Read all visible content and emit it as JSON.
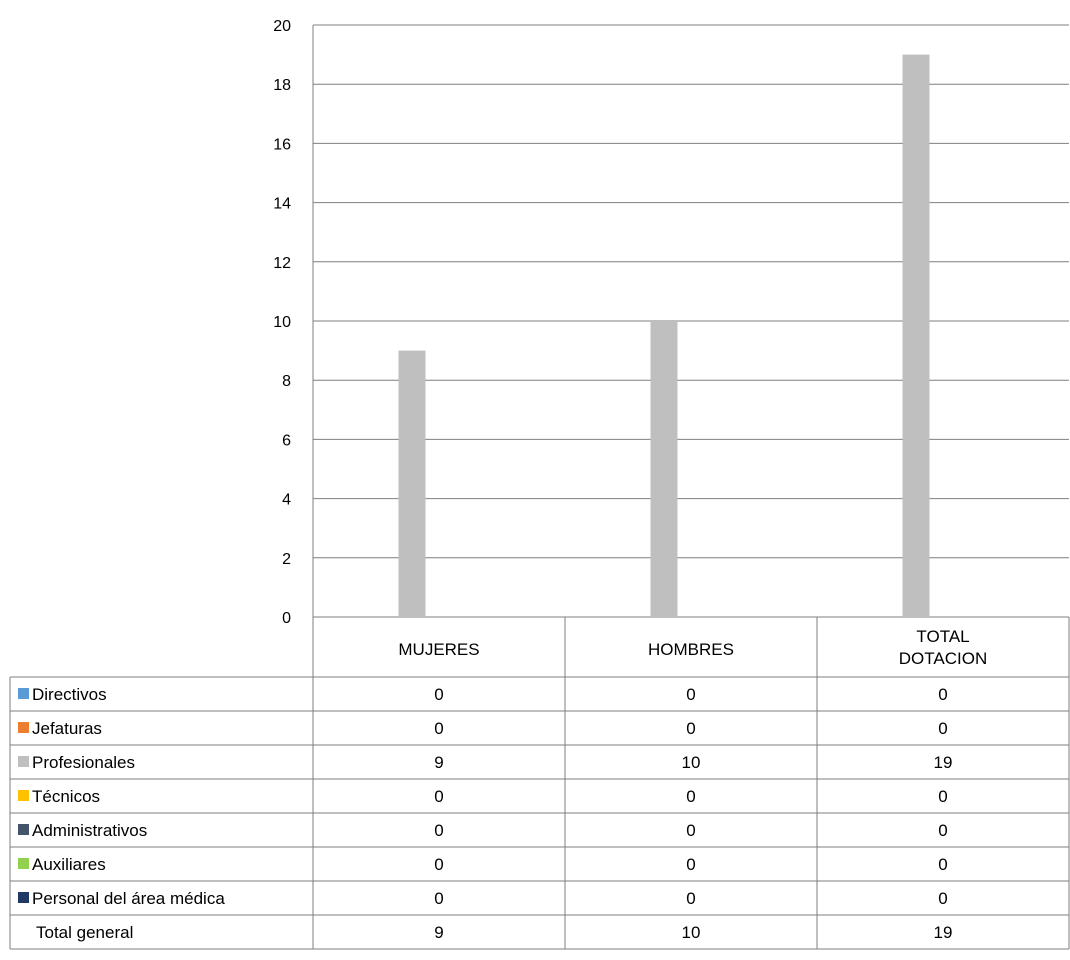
{
  "chart_data": {
    "type": "bar",
    "categories": [
      "MUJERES",
      "HOMBRES",
      "TOTAL DOTACION"
    ],
    "category_label_lines": [
      [
        "MUJERES"
      ],
      [
        "HOMBRES"
      ],
      [
        "TOTAL",
        "DOTACION"
      ]
    ],
    "ylim": [
      0,
      20
    ],
    "yticks": [
      0,
      2,
      4,
      6,
      8,
      10,
      12,
      14,
      16,
      18,
      20
    ],
    "grid": true,
    "legend_placement": "data-table",
    "series": [
      {
        "name": "Directivos",
        "color": "#5b9bd5",
        "values": [
          0,
          0,
          0
        ]
      },
      {
        "name": "Jefaturas",
        "color": "#ed7d31",
        "values": [
          0,
          0,
          0
        ]
      },
      {
        "name": "Profesionales",
        "color": "#bfbfbf",
        "values": [
          9,
          10,
          19
        ]
      },
      {
        "name": "Técnicos",
        "color": "#ffc000",
        "values": [
          0,
          0,
          0
        ]
      },
      {
        "name": "Administrativos",
        "color": "#44546a",
        "values": [
          0,
          0,
          0
        ]
      },
      {
        "name": "Auxiliares",
        "color": "#92d050",
        "values": [
          0,
          0,
          0
        ]
      },
      {
        "name": "Personal del área médica",
        "color": "#203864",
        "values": [
          0,
          0,
          0
        ]
      }
    ],
    "total_row": {
      "name": "Total general",
      "values": [
        9,
        10,
        19
      ]
    }
  }
}
